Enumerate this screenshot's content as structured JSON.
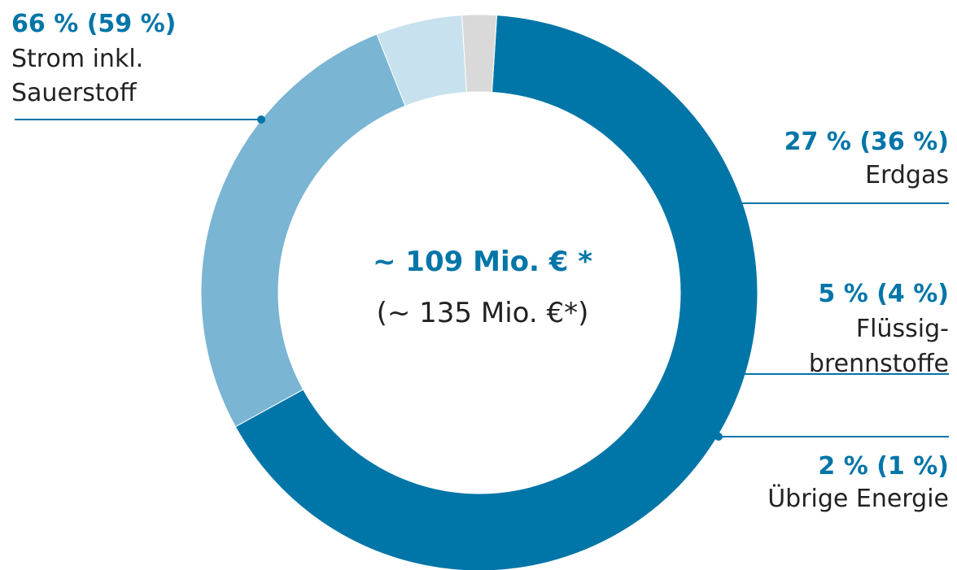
{
  "colors": {
    "accent": "#0075a8",
    "text": "#222222"
  },
  "center": {
    "main": "~ 109 Mio. € *",
    "sub": "(~ 135 Mio. €*)"
  },
  "chart_data": {
    "type": "pie",
    "donut": true,
    "unit": "%",
    "slices": [
      {
        "label_lines": [
          "Strom  inkl.",
          "Sauerstoff"
        ],
        "value": 66,
        "previous": 59,
        "pct_text": "66 % (59 %)",
        "color": "#0075a8"
      },
      {
        "label_lines": [
          "Erdgas"
        ],
        "value": 27,
        "previous": 36,
        "pct_text": "27 % (36 %)",
        "color": "#7ab5d3"
      },
      {
        "label_lines": [
          "Flüssig-",
          "brennstoffe"
        ],
        "value": 5,
        "previous": 4,
        "pct_text": "5 % (4 %)",
        "color": "#c7e1ee"
      },
      {
        "label_lines": [
          "Übrige Energie"
        ],
        "value": 2,
        "previous": 1,
        "pct_text": "2 % (1 %)",
        "color": "#d9d9d9"
      }
    ]
  }
}
